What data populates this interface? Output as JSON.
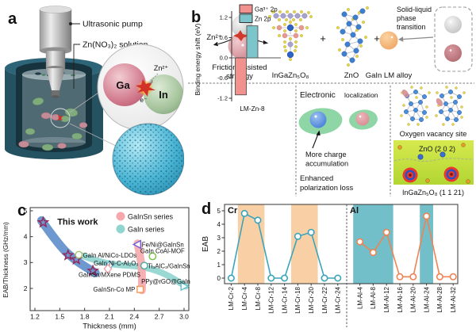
{
  "figure": {
    "panels": {
      "a": "a",
      "b": "b",
      "c": "c",
      "d": "d"
    }
  },
  "panel_a": {
    "pump_label": "Ultrasonic pump",
    "solution_label": "Zn(NO₃)₂ solution",
    "inset": {
      "ga": "Ga",
      "indium": "In",
      "electron": "e⁻",
      "zn_ion": "Zn²⁺"
    }
  },
  "panel_b": {
    "zn_ion": "Zn²⁺",
    "friction_caption_line1": "Friction-assisted",
    "friction_caption_line2": "strategy",
    "compound_igzo": "InGaZn₅O₈",
    "plus": "+",
    "compound_zno": "ZnO",
    "alloy_caption": "GaIn LM alloy",
    "transition_line1": "Solid-liquid",
    "transition_line2": "phase",
    "transition_line3": "transition",
    "electronic_title_main": "Electronic",
    "electronic_title_sub": "localization",
    "charge_note_line1": "More charge",
    "charge_note_line2": "accumulation",
    "polarization_note_line1": "Enhanced",
    "polarization_note_line2": "polarization loss",
    "vacancy_caption": "Oxygen vacancy site",
    "zno_plane_label": "ZnO (2 0 2)",
    "igzo_plane_label": "InGaZn₅O₈ (1 1 21)"
  },
  "illustration_colors": {
    "vessel_teal": "#245261",
    "porous_sphere_cyan": "#49b4d4",
    "alloy_orange": "#ec9a55",
    "localization_green": "#8ed6a6",
    "map_green": "#c8e23e"
  },
  "chart_data": [
    {
      "id": "binding-energy-bar",
      "type": "bar",
      "panel": "b",
      "ylabel": "Binding energy shift (eV)",
      "categories": [
        "LM-Zn-8"
      ],
      "series": [
        {
          "name": "Ga³⁺ 2p",
          "values": [
            -1.1
          ],
          "color": "#f2928f"
        },
        {
          "name": "Zn 2p",
          "values": [
            0.95
          ],
          "color": "#7cc5ca"
        }
      ],
      "yticks": [
        1.2,
        0.6,
        0.0,
        -0.6,
        -1.2
      ],
      "ylim": [
        -1.45,
        1.45
      ],
      "legend_position": "top",
      "grid": false
    },
    {
      "id": "eab-thickness-scatter",
      "type": "scatter",
      "panel": "c",
      "xlabel": "Thickness (mm)",
      "ylabel": "EAB/Thickness (GHz/mm)",
      "xticks": [
        1.2,
        1.5,
        1.8,
        2.1,
        2.4,
        2.7,
        3.0
      ],
      "yticks": [
        2,
        3,
        4,
        5
      ],
      "xlim": [
        1.14,
        3.06
      ],
      "ylim": [
        1.08,
        5.12
      ],
      "grid": false,
      "annotation": {
        "text": "This work",
        "x": 1.47,
        "y": 4.47
      },
      "legend": [
        {
          "label": "GaInSn series",
          "color": "#f6a8ac"
        },
        {
          "label": "GaIn series",
          "color": "#90d5d0"
        }
      ],
      "bands": [
        {
          "name": "this-work-trend",
          "color": "#4a80c4",
          "width": 11,
          "opacity": 0.8,
          "points": [
            [
              1.28,
              4.62
            ],
            [
              1.5,
              3.62
            ],
            [
              1.7,
              3.05
            ],
            [
              1.93,
              2.6
            ]
          ]
        },
        {
          "name": "gain-series-trend",
          "color": "#8fd4cf",
          "width": 8,
          "opacity": 0.9,
          "points": [
            [
              1.74,
              3.3
            ],
            [
              2.05,
              2.92
            ],
            [
              2.45,
              2.88
            ],
            [
              2.75,
              2.62
            ],
            [
              3.02,
              2.08
            ]
          ]
        },
        {
          "name": "gainsn-series-trend",
          "color": "#f5a9ad",
          "width": 10,
          "opacity": 0.9,
          "points": [
            [
              2.49,
              1.93
            ],
            [
              2.5,
              2.7
            ],
            [
              2.44,
              3.74
            ]
          ]
        }
      ],
      "series_points": [
        {
          "name": "This work",
          "marker": "star",
          "color": "#93295c",
          "points": [
            [
              1.3,
              4.55
            ],
            [
              1.6,
              3.28
            ],
            [
              1.7,
              3.12
            ],
            [
              1.9,
              2.68
            ]
          ]
        },
        {
          "name": "GaIn Al/NiCo-LDOs",
          "marker": "circle",
          "color": "#a2c46a",
          "points": [
            [
              1.73,
              3.3
            ]
          ],
          "label": {
            "x": 1.78,
            "y": 3.28,
            "anchor": "start"
          }
        },
        {
          "name": "GaIn Ni-C-Al₂O₃",
          "marker": "diamond",
          "color": "#69b8d8",
          "points": [
            [
              2.1,
              2.9
            ]
          ],
          "label": {
            "x": 2.45,
            "y": 2.97,
            "anchor": "end"
          }
        },
        {
          "name": "GaInSn/MXene PDMS",
          "marker": "diamond",
          "color": "#eda4ac",
          "points": [
            [
              2.08,
              2.76
            ]
          ],
          "label": {
            "x": 2.1,
            "y": 2.52,
            "anchor": "middle"
          }
        },
        {
          "name": "Fe/Ni@GaInSn",
          "marker": "triangle-left",
          "color": "#6f5bd4",
          "points": [
            [
              2.44,
              3.7
            ]
          ],
          "label": {
            "x": 2.49,
            "y": 3.69,
            "anchor": "start"
          }
        },
        {
          "name": "GaIn CoAl-MOF",
          "marker": "circle",
          "color": "#74c043",
          "points": [
            [
              2.62,
              3.24
            ]
          ],
          "label": {
            "x": 2.74,
            "y": 3.44,
            "anchor": "middle"
          }
        },
        {
          "name": "Ti₃AlC₂/GaInSn",
          "marker": "circle",
          "color": "#4aa9a2",
          "points": [
            [
              2.52,
              2.88
            ]
          ],
          "label": {
            "x": 2.56,
            "y": 2.86,
            "anchor": "start"
          }
        },
        {
          "name": "PPy@rGO@GaIn",
          "marker": "triangle-right",
          "color": "#63c2c8",
          "points": [
            [
              3.0,
              2.08
            ]
          ],
          "label": {
            "x": 2.78,
            "y": 2.26,
            "anchor": "middle"
          }
        },
        {
          "name": "GaInSn-Co MP",
          "marker": "square",
          "color": "#f59a53",
          "points": [
            [
              2.47,
              1.96
            ]
          ],
          "label": {
            "x": 2.41,
            "y": 1.96,
            "anchor": "end"
          }
        }
      ]
    },
    {
      "id": "eab-dopant-line",
      "type": "line",
      "panel": "d",
      "ylabel": "EAB",
      "yticks": [
        0,
        1,
        2,
        3,
        4,
        5
      ],
      "ylim": [
        -0.45,
        5.45
      ],
      "grid": false,
      "groups": [
        {
          "name": "Cr",
          "name_color": "#29a8e0",
          "line_color": "#3aa5ba",
          "band_color": "#f9cfa6",
          "categories": [
            "LM-Cr-2",
            "LM-Cr-4",
            "LM-Cr-8",
            "LM-Cr-12",
            "LM-Cr-14",
            "LM-Cr-18",
            "LM-Cr-20",
            "LM-Cr-22",
            "LM-Cr-24"
          ],
          "values": [
            0,
            4.8,
            4.3,
            0,
            0,
            3.1,
            3.4,
            0,
            0
          ],
          "highlight_bands": [
            [
              1,
              2
            ],
            [
              5,
              6
            ]
          ]
        },
        {
          "name": "Al",
          "name_color": "#e8432e",
          "line_color": "#ef8354",
          "band_color": "#72bfc9",
          "categories": [
            "LM-Al-4",
            "LM-Al-8",
            "LM-Al-12",
            "LM-Al-16",
            "LM-Al-20",
            "LM-Al-24",
            "LM-Al-28",
            "LM-Al-32"
          ],
          "values": [
            2.7,
            1.9,
            3.4,
            0.1,
            0.1,
            4.6,
            0.1,
            0.1
          ],
          "highlight_bands": [
            [
              0,
              2
            ],
            [
              5,
              5
            ]
          ]
        }
      ]
    }
  ]
}
